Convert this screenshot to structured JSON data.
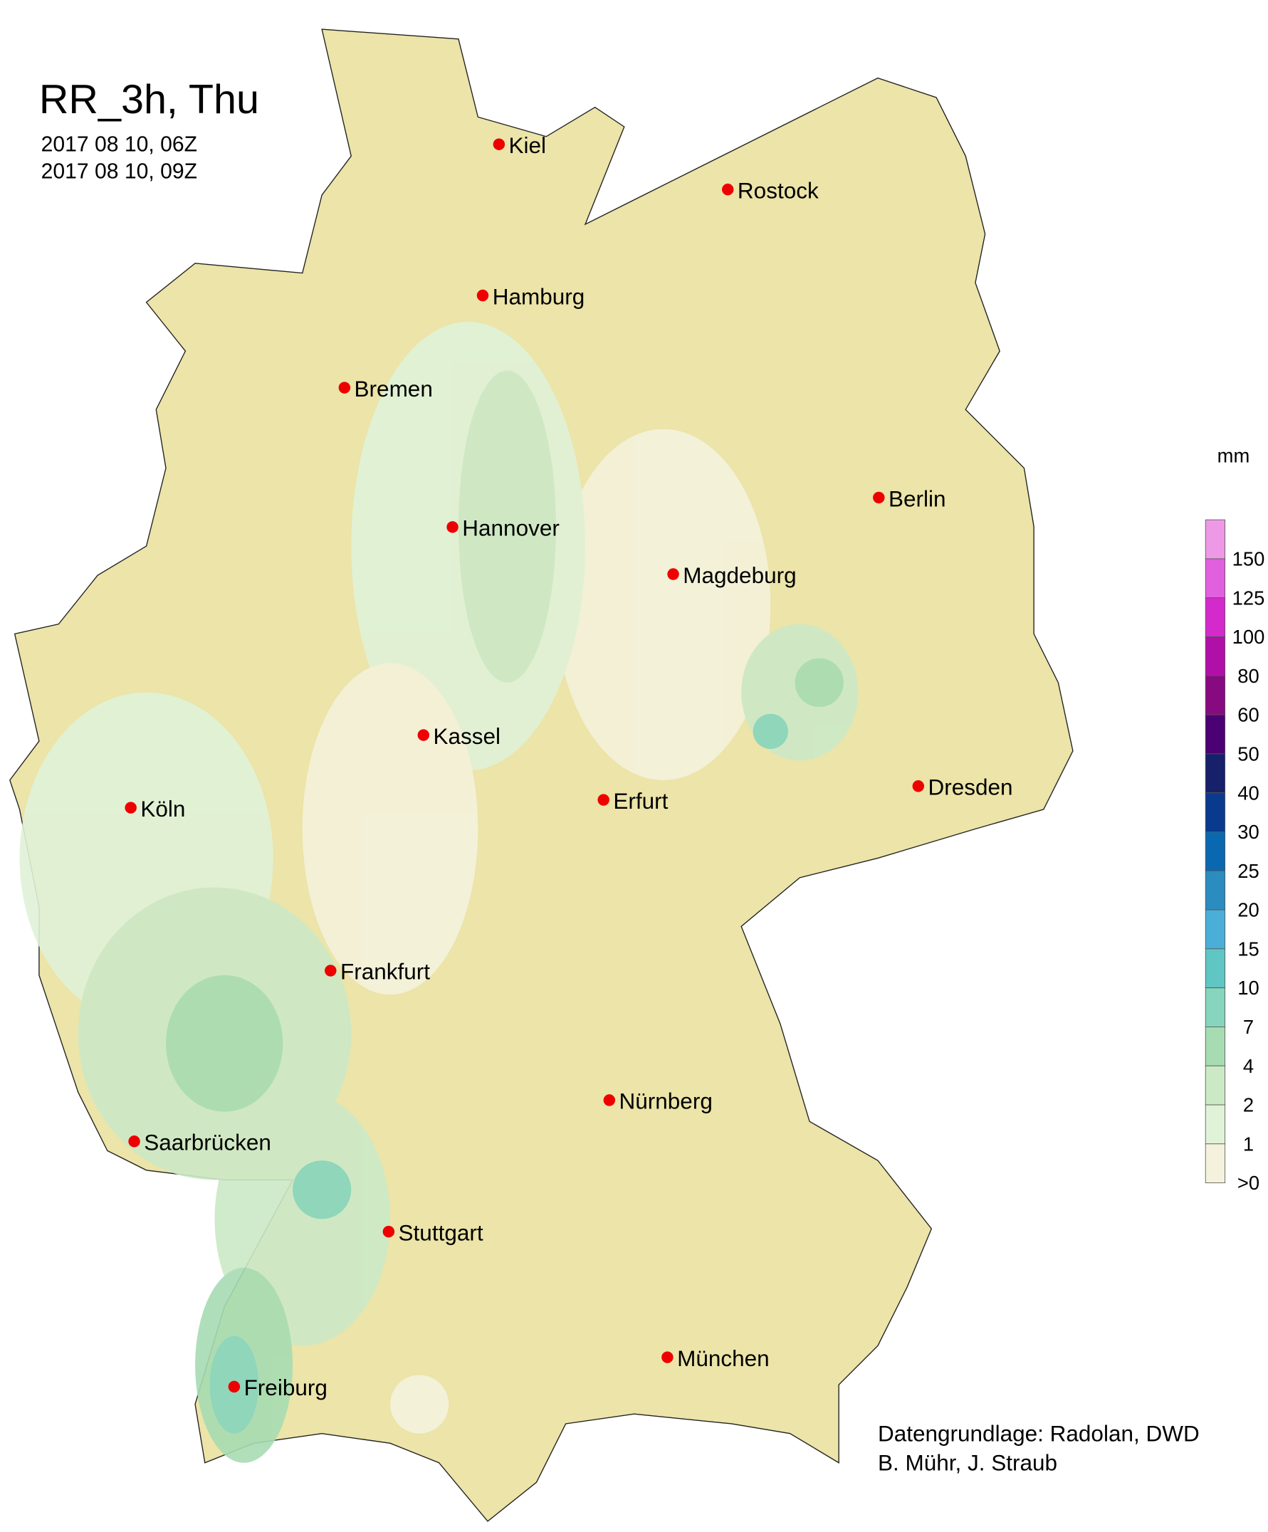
{
  "title": "RR_3h, Thu",
  "period_start": "2017 08 10, 06Z",
  "period_end": "2017 08 10, 09Z",
  "legend": {
    "unit": "mm",
    "labels": [
      "150",
      "125",
      "100",
      "80",
      "60",
      "50",
      "40",
      "30",
      "25",
      "20",
      "15",
      "10",
      "7",
      "4",
      "2",
      "1",
      ">0"
    ],
    "colors": [
      "#ee99e6",
      "#e060dd",
      "#d42acc",
      "#b010a8",
      "#880a80",
      "#4b0073",
      "#17206a",
      "#0a3a8e",
      "#0a68b0",
      "#2b8cbf",
      "#4aaed6",
      "#60c6c4",
      "#86d5bc",
      "#a7dcb3",
      "#cce9c6",
      "#e0f2d8",
      "#f4f2dc"
    ]
  },
  "colors": {
    "land": "#ece4a8",
    "city_marker": "#ee0000",
    "rivers": "#7c7cf0"
  },
  "cities": [
    {
      "name": "Kiel",
      "lon": 10.13,
      "lat": 54.32
    },
    {
      "name": "Rostock",
      "lon": 12.1,
      "lat": 54.09
    },
    {
      "name": "Hamburg",
      "lon": 9.99,
      "lat": 53.55
    },
    {
      "name": "Bremen",
      "lon": 8.8,
      "lat": 53.08
    },
    {
      "name": "Berlin",
      "lon": 13.4,
      "lat": 52.52
    },
    {
      "name": "Hannover",
      "lon": 9.73,
      "lat": 52.37
    },
    {
      "name": "Magdeburg",
      "lon": 11.63,
      "lat": 52.13
    },
    {
      "name": "Kassel",
      "lon": 9.48,
      "lat": 51.31
    },
    {
      "name": "Dresden",
      "lon": 13.74,
      "lat": 51.05
    },
    {
      "name": "Köln",
      "lon": 6.96,
      "lat": 50.94
    },
    {
      "name": "Erfurt",
      "lon": 11.03,
      "lat": 50.98
    },
    {
      "name": "Frankfurt",
      "lon": 8.68,
      "lat": 50.11
    },
    {
      "name": "Nürnberg",
      "lon": 11.08,
      "lat": 49.45
    },
    {
      "name": "Saarbrücken",
      "lon": 6.99,
      "lat": 49.24
    },
    {
      "name": "Stuttgart",
      "lon": 9.18,
      "lat": 48.78
    },
    {
      "name": "München",
      "lon": 11.58,
      "lat": 48.14
    },
    {
      "name": "Freiburg",
      "lon": 7.85,
      "lat": 47.99
    }
  ],
  "credits": [
    "Datengrundlage: Radolan, DWD",
    "B. Mühr, J. Straub"
  ]
}
